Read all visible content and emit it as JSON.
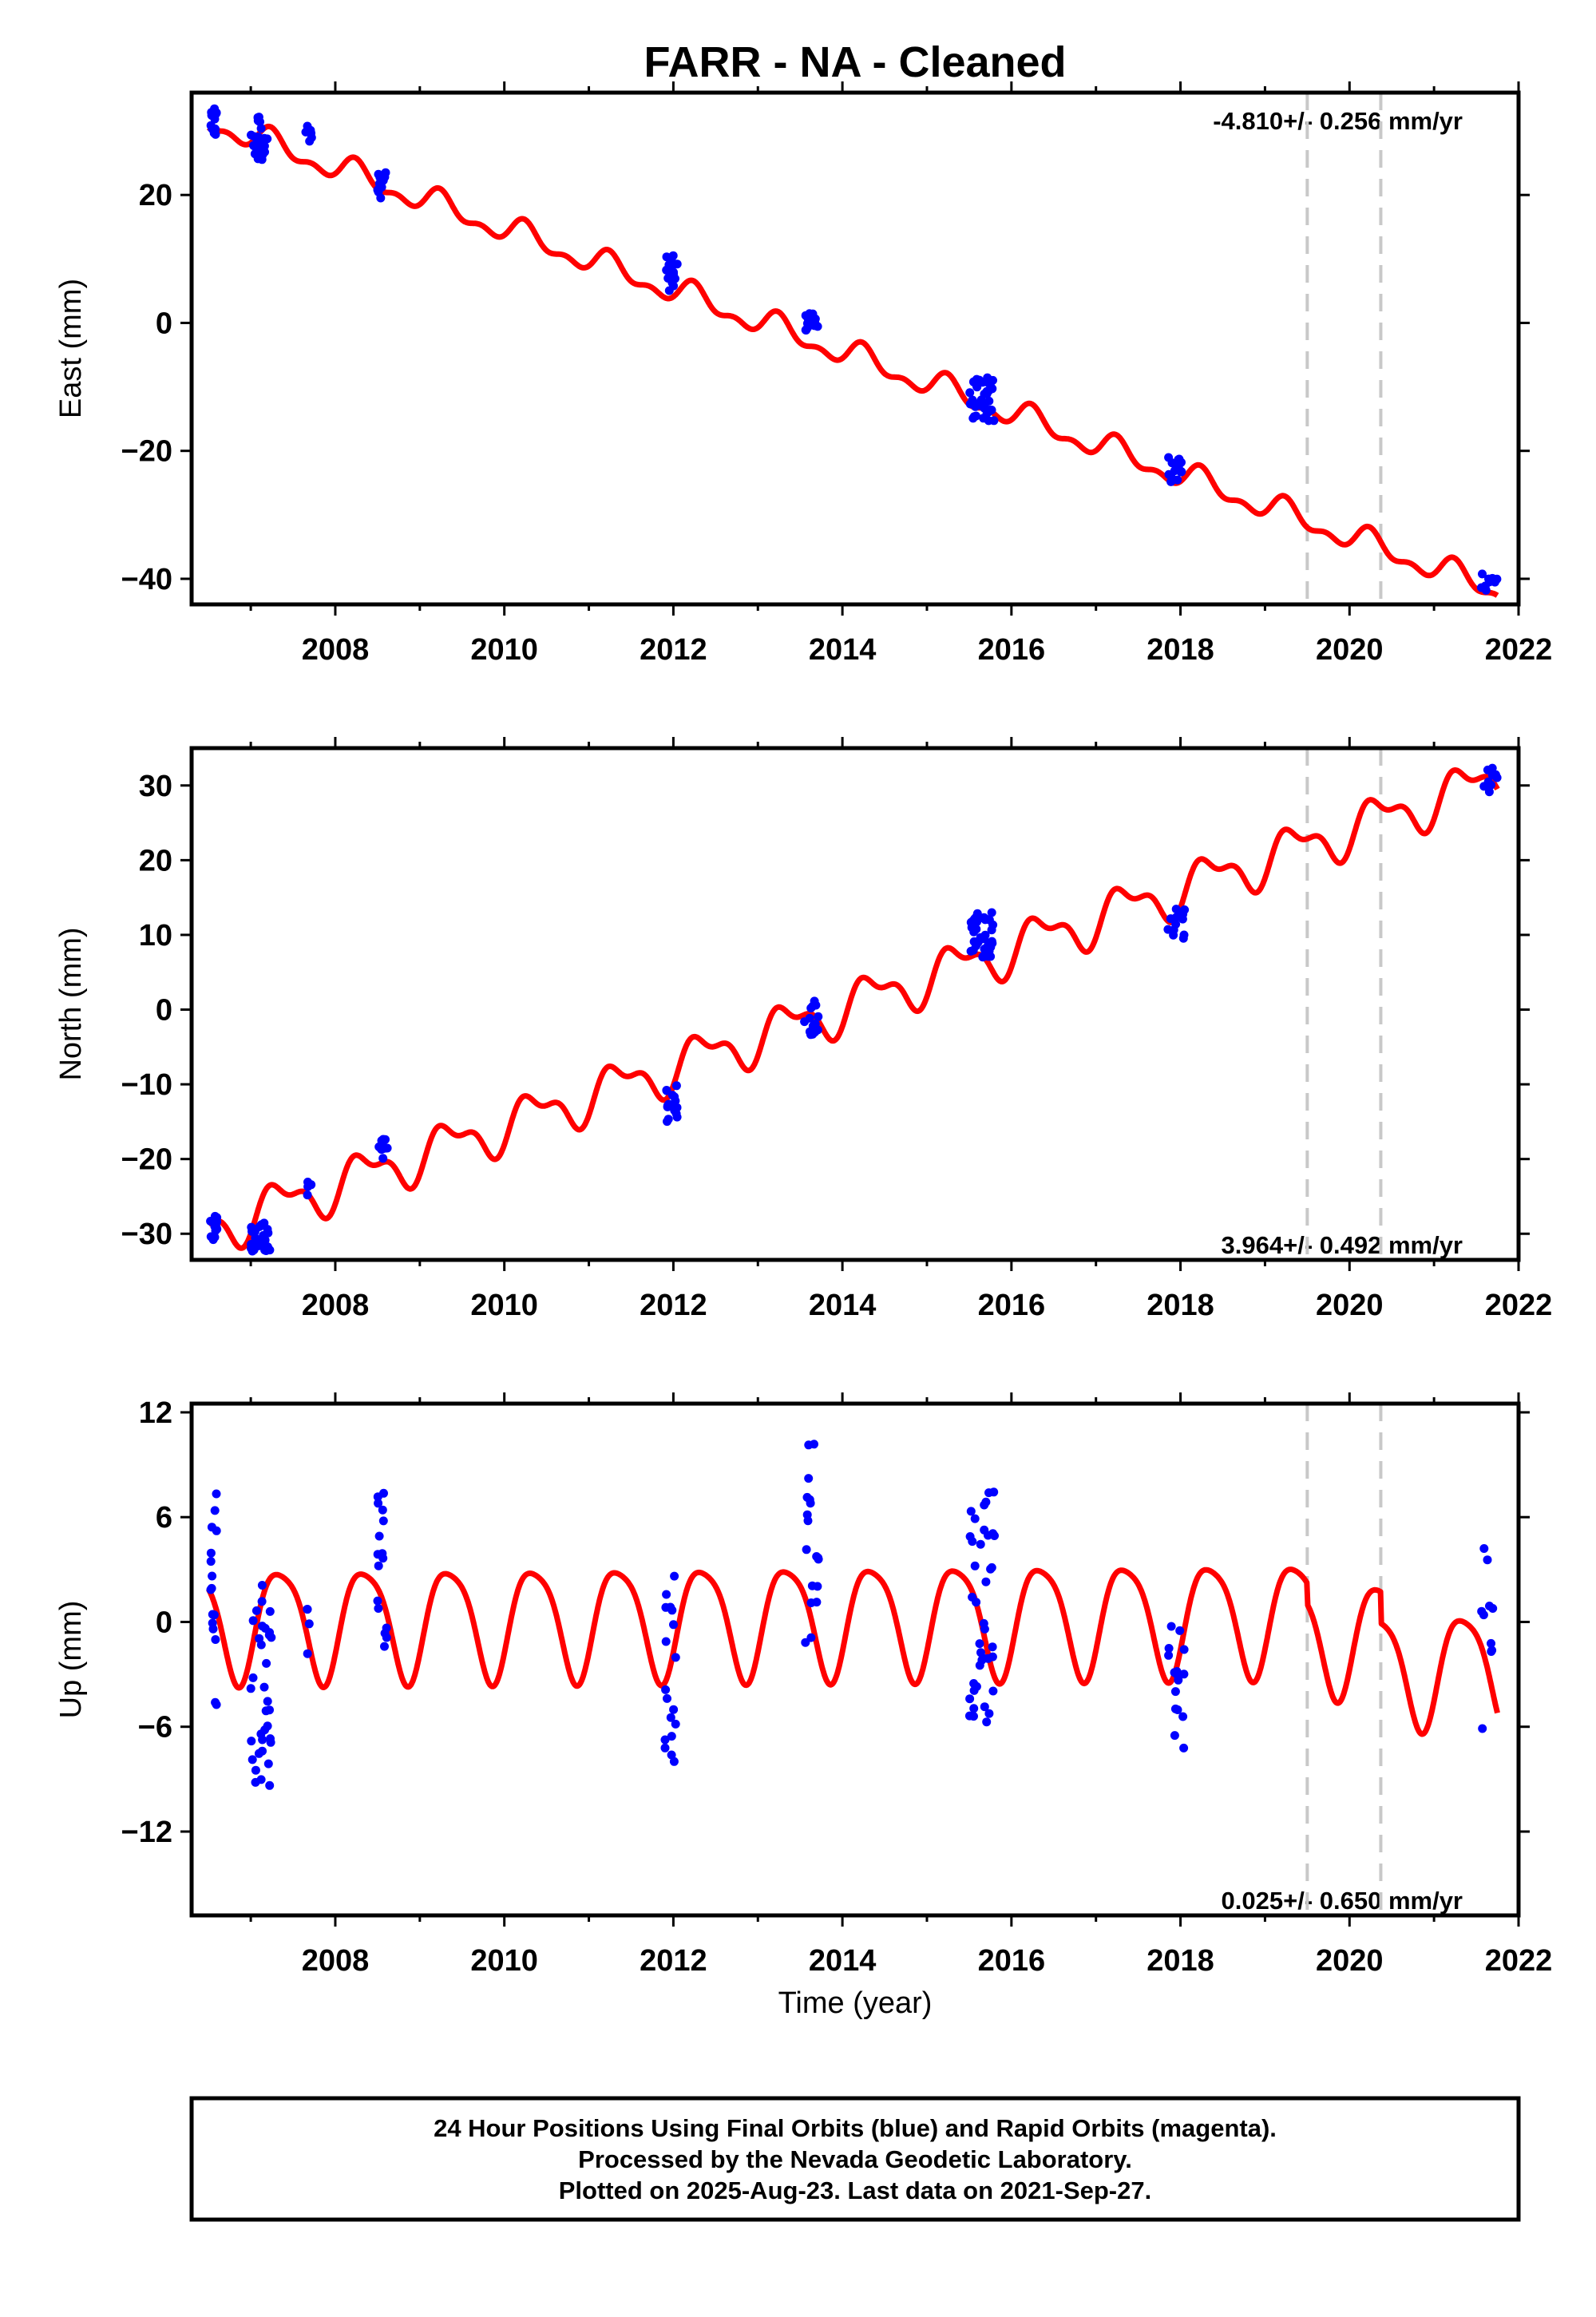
{
  "title": "FARR  - NA - Cleaned",
  "xlabel": "Time (year)",
  "footer": {
    "line1": "24 Hour Positions Using Final Orbits (blue) and Rapid Orbits (magenta).",
    "line2": "Processed by the Nevada Geodetic Laboratory.",
    "line3": "Plotted on 2025-Aug-23. Last data on 2021-Sep-27."
  },
  "colors": {
    "observations": "#0000ff",
    "model": "#ff0000",
    "breaks": "#c8c8c8"
  },
  "chart_data": [
    {
      "type": "scatter",
      "component": "east",
      "ylabel": "East (mm)",
      "rate_label": "-4.810+/- 0.256 mm/yr",
      "xlim": [
        2006.3,
        2022.0
      ],
      "ylim": [
        -44,
        36
      ],
      "yticks": [
        -40,
        -20,
        0,
        20
      ],
      "xticks": [
        2008,
        2010,
        2012,
        2014,
        2016,
        2018,
        2020,
        2022
      ],
      "breaks": [
        2019.5,
        2020.37
      ],
      "model": {
        "trend_mm_per_yr": -4.81,
        "intercept_mm": 31.5,
        "t0": 2006.5,
        "model_range": [
          2006.5,
          2021.75
        ],
        "seasonal": [
          {
            "period_yr": 1.0,
            "amp_mm": 1.7,
            "phase_yr": 0.0
          },
          {
            "period_yr": 0.5,
            "amp_mm": 1.0,
            "phase_yr": 0.1
          }
        ],
        "offsets": [
          {
            "year": 2019.5,
            "mm": 0.0
          },
          {
            "year": 2020.37,
            "mm": 0.0
          }
        ]
      },
      "observations": [
        {
          "t_start": 2006.52,
          "t_end": 2006.6,
          "center_mm": 31,
          "spread_mm": 2.5,
          "count": 14
        },
        {
          "t_start": 2007.0,
          "t_end": 2007.2,
          "center_mm": 29,
          "spread_mm": 3.5,
          "count": 28
        },
        {
          "t_start": 2007.65,
          "t_end": 2007.72,
          "center_mm": 29,
          "spread_mm": 3.0,
          "count": 6
        },
        {
          "t_start": 2008.5,
          "t_end": 2008.62,
          "center_mm": 21.5,
          "spread_mm": 2.0,
          "count": 14
        },
        {
          "t_start": 2011.9,
          "t_end": 2012.05,
          "center_mm": 8,
          "spread_mm": 3.0,
          "count": 18
        },
        {
          "t_start": 2013.55,
          "t_end": 2013.72,
          "center_mm": 0,
          "spread_mm": 1.5,
          "count": 14
        },
        {
          "t_start": 2015.5,
          "t_end": 2015.8,
          "center_mm": -12,
          "spread_mm": 3.5,
          "count": 40
        },
        {
          "t_start": 2017.85,
          "t_end": 2018.05,
          "center_mm": -23,
          "spread_mm": 2.0,
          "count": 16
        },
        {
          "t_start": 2021.55,
          "t_end": 2021.75,
          "center_mm": -40.5,
          "spread_mm": 1.3,
          "count": 10
        }
      ]
    },
    {
      "type": "scatter",
      "component": "north",
      "ylabel": "North (mm)",
      "rate_label": "3.964+/- 0.492 mm/yr",
      "xlim": [
        2006.3,
        2022.0
      ],
      "ylim": [
        -33.5,
        35
      ],
      "yticks": [
        -30,
        -20,
        -10,
        0,
        10,
        20,
        30
      ],
      "xticks": [
        2008,
        2010,
        2012,
        2014,
        2016,
        2018,
        2020,
        2022
      ],
      "breaks": [
        2019.5,
        2020.37
      ],
      "model": {
        "trend_mm_per_yr": 3.964,
        "intercept_mm": -29.5,
        "t0": 2006.5,
        "model_range": [
          2006.5,
          2021.75
        ],
        "seasonal": [
          {
            "period_yr": 1.0,
            "amp_mm": 2.8,
            "phase_yr": 0.1
          },
          {
            "period_yr": 0.5,
            "amp_mm": 1.4,
            "phase_yr": 0.05
          }
        ],
        "offsets": [
          {
            "year": 2019.5,
            "mm": 0.0
          },
          {
            "year": 2020.37,
            "mm": 0.0
          }
        ]
      },
      "observations": [
        {
          "t_start": 2006.52,
          "t_end": 2006.6,
          "center_mm": -29,
          "spread_mm": 2.0,
          "count": 12
        },
        {
          "t_start": 2007.0,
          "t_end": 2007.25,
          "center_mm": -30.5,
          "spread_mm": 2.0,
          "count": 30
        },
        {
          "t_start": 2007.65,
          "t_end": 2007.72,
          "center_mm": -24,
          "spread_mm": 1.0,
          "count": 4
        },
        {
          "t_start": 2008.5,
          "t_end": 2008.62,
          "center_mm": -18.5,
          "spread_mm": 1.5,
          "count": 12
        },
        {
          "t_start": 2011.9,
          "t_end": 2012.05,
          "center_mm": -12.5,
          "spread_mm": 2.5,
          "count": 16
        },
        {
          "t_start": 2013.55,
          "t_end": 2013.72,
          "center_mm": -1,
          "spread_mm": 2.5,
          "count": 14
        },
        {
          "t_start": 2015.5,
          "t_end": 2015.8,
          "center_mm": 10,
          "spread_mm": 3.0,
          "count": 40
        },
        {
          "t_start": 2017.85,
          "t_end": 2018.05,
          "center_mm": 11.5,
          "spread_mm": 2.0,
          "count": 14
        },
        {
          "t_start": 2021.55,
          "t_end": 2021.75,
          "center_mm": 30.5,
          "spread_mm": 2.0,
          "count": 10
        }
      ]
    },
    {
      "type": "scatter",
      "component": "up",
      "ylabel": "Up (mm)",
      "rate_label": "0.025+/- 0.650 mm/yr",
      "xlim": [
        2006.3,
        2022.0
      ],
      "ylim": [
        -16.8,
        12.5
      ],
      "yticks": [
        -12,
        -6,
        0,
        6,
        12
      ],
      "xticks": [
        2008,
        2010,
        2012,
        2014,
        2016,
        2018,
        2020,
        2022
      ],
      "breaks": [
        2019.5,
        2020.37
      ],
      "model": {
        "trend_mm_per_yr": 0.025,
        "intercept_mm": 0.0,
        "t0": 2006.5,
        "model_range": [
          2006.5,
          2021.75
        ],
        "seasonal": [
          {
            "period_yr": 1.0,
            "amp_mm": 3.2,
            "phase_yr": 0.1
          },
          {
            "period_yr": 0.5,
            "amp_mm": 0.6,
            "phase_yr": 0.0
          }
        ],
        "offsets": [
          {
            "year": 2019.5,
            "mm": -1.2
          },
          {
            "year": 2020.37,
            "mm": -1.8
          }
        ]
      },
      "observations": [
        {
          "t_start": 2006.52,
          "t_end": 2006.6,
          "center_mm": 1.5,
          "spread_mm": 7.0,
          "count": 16
        },
        {
          "t_start": 2007.0,
          "t_end": 2007.25,
          "center_mm": -3.5,
          "spread_mm": 6.0,
          "count": 34
        },
        {
          "t_start": 2007.65,
          "t_end": 2007.72,
          "center_mm": 0,
          "spread_mm": 4.0,
          "count": 4
        },
        {
          "t_start": 2008.5,
          "t_end": 2008.62,
          "center_mm": 3,
          "spread_mm": 5.0,
          "count": 16
        },
        {
          "t_start": 2011.9,
          "t_end": 2012.05,
          "center_mm": -2,
          "spread_mm": 6.0,
          "count": 18
        },
        {
          "t_start": 2013.55,
          "t_end": 2013.72,
          "center_mm": 5,
          "spread_mm": 6.5,
          "count": 18
        },
        {
          "t_start": 2015.5,
          "t_end": 2015.8,
          "center_mm": 1,
          "spread_mm": 7.0,
          "count": 40
        },
        {
          "t_start": 2017.85,
          "t_end": 2018.05,
          "center_mm": -4,
          "spread_mm": 4.0,
          "count": 16
        },
        {
          "t_start": 2021.55,
          "t_end": 2021.75,
          "center_mm": -1,
          "spread_mm": 5.5,
          "count": 10
        }
      ]
    }
  ]
}
